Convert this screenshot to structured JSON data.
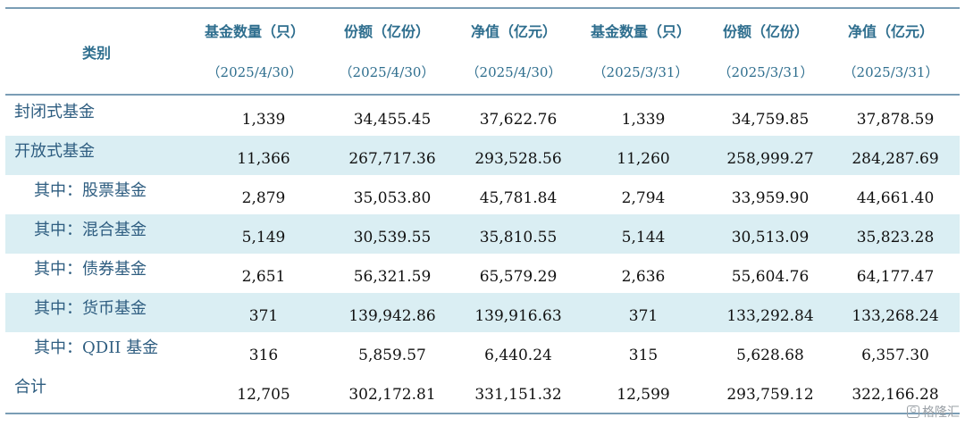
{
  "header": {
    "category_label": "类别",
    "columns": [
      {
        "title": "基金数量（只）",
        "date": "（2025/4/30）"
      },
      {
        "title": "份额（亿份）",
        "date": "（2025/4/30）"
      },
      {
        "title": "净值（亿元）",
        "date": "（2025/4/30）"
      },
      {
        "title": "基金数量（只）",
        "date": "（2025/3/31）"
      },
      {
        "title": "份额（亿份）",
        "date": "（2025/3/31）"
      },
      {
        "title": "净值（亿元）",
        "date": "（2025/3/31）"
      }
    ]
  },
  "rows": [
    {
      "label": "封闭式基金",
      "values": [
        "1,339",
        "34,455.45",
        "37,622.76",
        "1,339",
        "34,759.85",
        "37,878.59"
      ]
    },
    {
      "label": "开放式基金",
      "values": [
        "11,366",
        "267,717.36",
        "293,528.56",
        "11,260",
        "258,999.27",
        "284,287.69"
      ]
    },
    {
      "label": "其中：股票基金",
      "values": [
        "2,879",
        "35,053.80",
        "45,781.84",
        "2,794",
        "33,959.90",
        "44,661.40"
      ]
    },
    {
      "label": "其中：混合基金",
      "values": [
        "5,149",
        "30,539.55",
        "35,810.55",
        "5,144",
        "30,513.09",
        "35,823.28"
      ]
    },
    {
      "label": "其中：债券基金",
      "values": [
        "2,651",
        "56,321.59",
        "65,579.29",
        "2,636",
        "55,604.76",
        "64,177.47"
      ]
    },
    {
      "label": "其中：货币基金",
      "values": [
        "371",
        "139,942.86",
        "139,916.63",
        "371",
        "133,292.84",
        "133,268.24"
      ]
    },
    {
      "label": "其中：QDII 基金",
      "values": [
        "316",
        "5,859.57",
        "6,440.24",
        "315",
        "5,628.68",
        "6,357.30"
      ]
    },
    {
      "label": "合计",
      "values": [
        "12,705",
        "302,172.81",
        "331,151.32",
        "12,599",
        "293,759.12",
        "322,166.28"
      ]
    }
  ],
  "watermark": {
    "text": "格隆汇"
  },
  "colors": {
    "shade": "#daeef3",
    "header_text": "#2e6e8e",
    "label_text": "#2e5d80",
    "rule": "#7a9db5"
  }
}
